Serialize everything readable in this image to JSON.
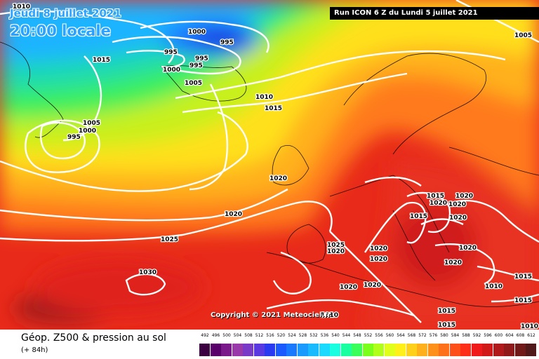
{
  "header": {
    "date": "Jeudi 8 juillet 2021",
    "time": "20:00 locale",
    "run": "Run ICON 6 Z du Lundi 5 juillet 2021"
  },
  "copyright": "Copyright © 2021 Meteociel.fr",
  "footer": {
    "title": "Géop. Z500 & pression au sol",
    "subtitle": "(+ 84h)"
  },
  "legend": {
    "values": [
      "492",
      "496",
      "500",
      "504",
      "508",
      "512",
      "516",
      "520",
      "524",
      "528",
      "532",
      "536",
      "540",
      "544",
      "548",
      "552",
      "556",
      "560",
      "564",
      "568",
      "572",
      "576",
      "580",
      "584",
      "588",
      "592",
      "596",
      "600",
      "604",
      "608",
      "612"
    ],
    "colors": [
      "#3a0040",
      "#5a006a",
      "#7a1a8a",
      "#9a3aaa",
      "#7a3ac8",
      "#5a3ae0",
      "#2a3af0",
      "#1a5aff",
      "#1a7aff",
      "#1a9aff",
      "#1abaff",
      "#1adaff",
      "#1affe0",
      "#1affa0",
      "#3aff5a",
      "#7aff1a",
      "#b0ff1a",
      "#e0ff1a",
      "#fff01a",
      "#ffd01a",
      "#ffb01a",
      "#ff901a",
      "#ff701a",
      "#ff501a",
      "#ff301a",
      "#f01a1a",
      "#d01a1a",
      "#b01a1a",
      "#901a1a",
      "#701a1a",
      "#501a1a"
    ]
  },
  "isobars": [
    {
      "text": "1010",
      "id": "isobar-1010-nw"
    },
    {
      "text": "1000",
      "id": "isobar-1000-greenland-n"
    },
    {
      "text": "995",
      "id": "isobar-995-a"
    },
    {
      "text": "995",
      "id": "isobar-995-b"
    },
    {
      "text": "995",
      "id": "isobar-995-c"
    },
    {
      "text": "995",
      "id": "isobar-995-d"
    },
    {
      "text": "1000",
      "id": "isobar-1000-b"
    },
    {
      "text": "1015",
      "id": "isobar-1015-w"
    },
    {
      "text": "1005",
      "id": "isobar-1005-iceland"
    },
    {
      "text": "1010",
      "id": "isobar-1010-iceland"
    },
    {
      "text": "1015",
      "id": "isobar-1015-iceland"
    },
    {
      "text": "1005",
      "id": "isobar-1005-sw"
    },
    {
      "text": "1000",
      "id": "isobar-1000-sw"
    },
    {
      "text": "995",
      "id": "isobar-995-sw"
    },
    {
      "text": "1020",
      "id": "isobar-1020-ireland"
    },
    {
      "text": "1020",
      "id": "isobar-1020-atl"
    },
    {
      "text": "1025",
      "id": "isobar-1025"
    },
    {
      "text": "1030",
      "id": "isobar-1030"
    },
    {
      "text": "1025",
      "id": "isobar-1025-iberia"
    },
    {
      "text": "1020",
      "id": "isobar-1020-iberia"
    },
    {
      "text": "1020",
      "id": "isobar-1020-med-a"
    },
    {
      "text": "1020",
      "id": "isobar-1020-med-b"
    },
    {
      "text": "1020",
      "id": "isobar-1020-africa-a"
    },
    {
      "text": "1020",
      "id": "isobar-1020-africa-b"
    },
    {
      "text": "1015",
      "id": "isobar-1015-italy"
    },
    {
      "text": "1015",
      "id": "isobar-1015-balkan"
    },
    {
      "text": "1020",
      "id": "isobar-1020-balkan-a"
    },
    {
      "text": "1020",
      "id": "isobar-1020-balkan-b"
    },
    {
      "text": "1020",
      "id": "isobar-1020-balkan-c"
    },
    {
      "text": "1020",
      "id": "isobar-1020-balkan-d"
    },
    {
      "text": "1020",
      "id": "isobar-1020-greece"
    },
    {
      "text": "1020",
      "id": "isobar-1020-east"
    },
    {
      "text": "1010",
      "id": "isobar-1010-east"
    },
    {
      "text": "1015",
      "id": "isobar-1015-east-a"
    },
    {
      "text": "1015",
      "id": "isobar-1015-east-b"
    },
    {
      "text": "1015",
      "id": "isobar-1015-sahara"
    },
    {
      "text": "1010",
      "id": "isobar-1010-sahara"
    },
    {
      "text": "1005",
      "id": "isobar-1005-ne"
    },
    {
      "text": "1015",
      "id": "isobar-1015-se"
    },
    {
      "text": "1010",
      "id": "isobar-1010-se"
    }
  ]
}
